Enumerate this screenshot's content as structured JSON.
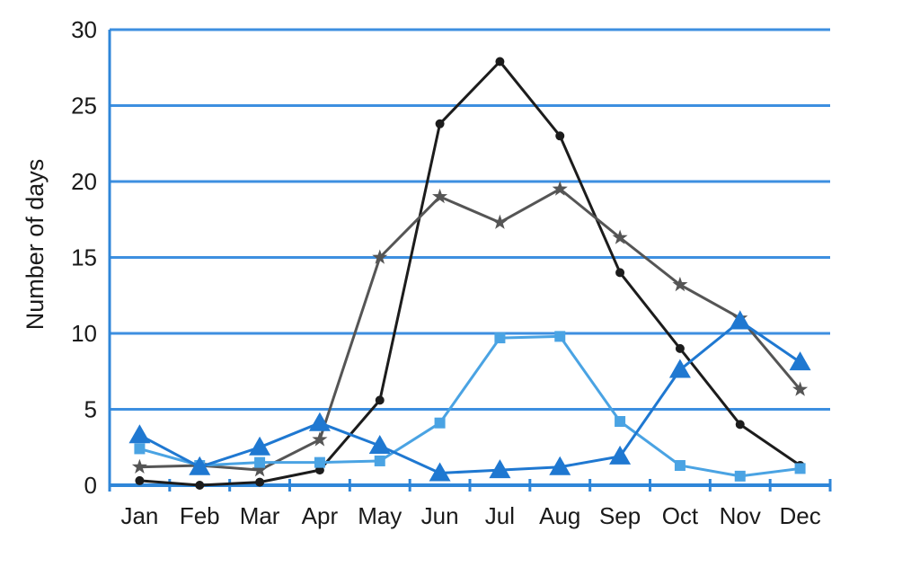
{
  "chart_data": {
    "type": "line",
    "title": "",
    "xlabel": "",
    "ylabel": "Number of days",
    "ylim": [
      0,
      30
    ],
    "yticks": [
      0,
      5,
      10,
      15,
      20,
      25,
      30
    ],
    "grid": "horizontal",
    "legend": "none",
    "categories": [
      "Jan",
      "Feb",
      "Mar",
      "Apr",
      "May",
      "Jun",
      "Jul",
      "Aug",
      "Sep",
      "Oct",
      "Nov",
      "Dec"
    ],
    "series": [
      {
        "marker": "circle",
        "color": "#1c1c1c",
        "points": [
          {
            "x": 0.5,
            "y": 0.3
          },
          {
            "x": 1.5,
            "y": 0.0
          },
          {
            "x": 2.5,
            "y": 0.2
          },
          {
            "x": 3.5,
            "y": 1.0
          },
          {
            "x": 4.5,
            "y": 5.6
          },
          {
            "x": 5.5,
            "y": 23.8
          },
          {
            "x": 6.5,
            "y": 27.9
          },
          {
            "x": 7.5,
            "y": 23.0
          },
          {
            "x": 8.5,
            "y": 14.0
          },
          {
            "x": 9.5,
            "y": 9.0
          },
          {
            "x": 10.5,
            "y": 4.0
          },
          {
            "x": 11.5,
            "y": 1.3
          }
        ]
      },
      {
        "marker": "star",
        "color": "#555555",
        "points": [
          {
            "x": 0.5,
            "y": 1.2
          },
          {
            "x": 1.5,
            "y": 1.3
          },
          {
            "x": 2.5,
            "y": 1.0
          },
          {
            "x": 3.5,
            "y": 3.0
          },
          {
            "x": 4.5,
            "y": 15.0
          },
          {
            "x": 5.5,
            "y": 19.0
          },
          {
            "x": 6.5,
            "y": 17.3
          },
          {
            "x": 7.5,
            "y": 19.5
          },
          {
            "x": 8.5,
            "y": 16.3
          },
          {
            "x": 9.5,
            "y": 13.2
          },
          {
            "x": 10.5,
            "y": 11.0
          },
          {
            "x": 11.5,
            "y": 6.3
          }
        ]
      },
      {
        "marker": "square",
        "color": "#4aa3e3",
        "points": [
          {
            "x": 0.5,
            "y": 2.4
          },
          {
            "x": 1.5,
            "y": 1.3
          },
          {
            "x": 2.5,
            "y": 1.5
          },
          {
            "x": 3.5,
            "y": 1.5
          },
          {
            "x": 4.5,
            "y": 1.6
          },
          {
            "x": 5.5,
            "y": 4.1
          },
          {
            "x": 6.5,
            "y": 9.7
          },
          {
            "x": 7.5,
            "y": 9.8
          },
          {
            "x": 8.5,
            "y": 4.2
          },
          {
            "x": 9.5,
            "y": 1.3
          },
          {
            "x": 10.5,
            "y": 0.6
          },
          {
            "x": 11.5,
            "y": 1.1
          }
        ]
      },
      {
        "marker": "triangle",
        "color": "#1f78d1",
        "points": [
          {
            "x": 0.5,
            "y": 3.3
          },
          {
            "x": 1.5,
            "y": 1.2
          },
          {
            "x": 2.5,
            "y": 2.5
          },
          {
            "x": 3.5,
            "y": 4.1
          },
          {
            "x": 4.5,
            "y": 2.6
          },
          {
            "x": 5.5,
            "y": 0.8
          },
          {
            "x": 6.5,
            "y": 1.0
          },
          {
            "x": 7.5,
            "y": 1.2
          },
          {
            "x": 8.5,
            "y": 1.9
          },
          {
            "x": 9.5,
            "y": 7.6
          },
          {
            "x": 10.5,
            "y": 10.8
          },
          {
            "x": 11.5,
            "y": 8.1
          }
        ]
      }
    ]
  },
  "colors": {
    "gridline": "#3d8fe0",
    "axis": "#2f86d8",
    "background": "#ffffff"
  }
}
